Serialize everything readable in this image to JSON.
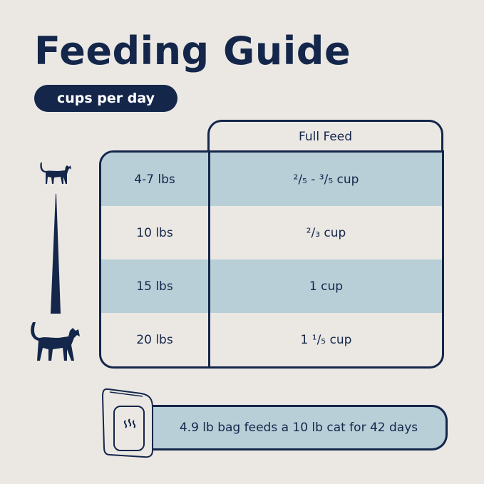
{
  "title": "Feeding Guide",
  "unit_badge": "cups per day",
  "table": {
    "column_header": "Full Feed",
    "rows": [
      {
        "weight": "4-7 lbs",
        "amount": "²/₅ - ³/₅ cup",
        "highlight": true
      },
      {
        "weight": "10 lbs",
        "amount": "²/₃ cup",
        "highlight": false
      },
      {
        "weight": "15 lbs",
        "amount": "1 cup",
        "highlight": true
      },
      {
        "weight": "20 lbs",
        "amount": "1 ¹/₅ cup",
        "highlight": false
      }
    ]
  },
  "banner": {
    "text": "4.9 lb bag feeds a 10 lb cat for 42 days"
  },
  "icons": [
    "small-cat-icon",
    "size-scale-wedge",
    "large-cat-icon",
    "food-bag-icon"
  ],
  "colors": {
    "navy": "#14264a",
    "row_blue": "#b8cfd8",
    "background": "#ebe8e4"
  }
}
